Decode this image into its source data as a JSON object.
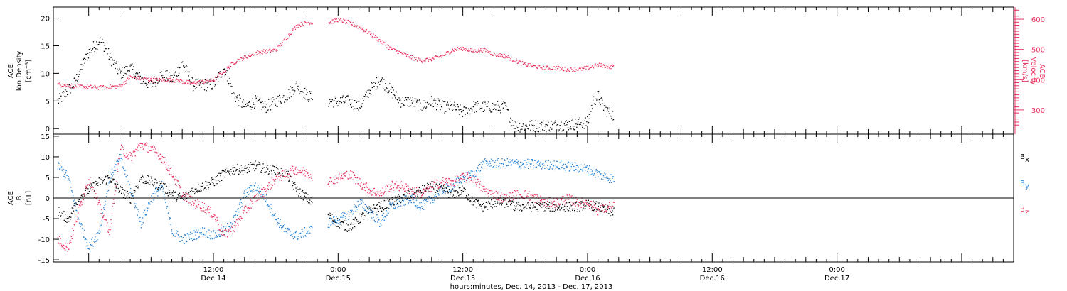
{
  "figure": {
    "xlabel": "hours:minutes, Dec. 14, 2013 - Dec. 17, 2013",
    "x_range_hours": [
      -3.4,
      89.0
    ],
    "x_ticks": [
      {
        "h": 12,
        "time": "12:00",
        "date": "Dec.14"
      },
      {
        "h": 24,
        "time": "0:00",
        "date": "Dec.15"
      },
      {
        "h": 36,
        "time": "12:00",
        "date": "Dec.15"
      },
      {
        "h": 48,
        "time": "0:00",
        "date": "Dec.16"
      },
      {
        "h": 60,
        "time": "12:00",
        "date": "Dec.16"
      },
      {
        "h": 72,
        "time": "0:00",
        "date": "Dec.17"
      }
    ]
  },
  "colors": {
    "black": "#000000",
    "pink": "#e8305f",
    "blue": "#1e7fd6"
  },
  "chart_data": [
    {
      "type": "scatter",
      "title": "",
      "ylabel_left": [
        "ACE",
        "Ion Density",
        "[cm⁻³]"
      ],
      "ylabel_right": [
        "ACE",
        "Velocity",
        "[km/s]"
      ],
      "ylim_left": [
        -1,
        22
      ],
      "ylim_right": [
        220,
        640
      ],
      "yticks_left": [
        0,
        5,
        10,
        15,
        20
      ],
      "yticks_right": [
        300,
        400,
        500,
        600
      ],
      "series": [
        {
          "name": "",
          "color": "black",
          "axis": "left",
          "x": [
            -3,
            -1.5,
            0,
            1,
            1.5,
            2,
            3,
            4,
            5,
            6,
            7,
            8,
            9,
            10,
            11,
            12,
            13,
            14,
            15,
            16,
            17,
            18,
            19,
            20,
            21,
            23,
            24,
            25,
            26,
            27,
            28,
            29,
            30,
            31,
            32,
            33,
            34,
            35,
            36,
            37,
            38,
            39,
            40,
            41,
            42,
            43,
            44,
            45,
            46,
            47,
            48,
            48.5,
            49,
            49.5,
            50,
            50.5
          ],
          "y": [
            5,
            8,
            14,
            16,
            15,
            13,
            10,
            11,
            9,
            8,
            10,
            9,
            12,
            8,
            8,
            8,
            11,
            6,
            4,
            5,
            4,
            5,
            6,
            8,
            6,
            5,
            5,
            5,
            4,
            7,
            9,
            7,
            5,
            5,
            4,
            5,
            4,
            4,
            3,
            4,
            4,
            4,
            4,
            0.5,
            0.5,
            0.6,
            0.6,
            0.7,
            0.8,
            1,
            1.2,
            5,
            6,
            4,
            3,
            2.5
          ]
        },
        {
          "name": "",
          "color": "pink",
          "axis": "right",
          "x": [
            -3,
            -1,
            1,
            3,
            4,
            6,
            8,
            10,
            12,
            14,
            16,
            18,
            19,
            20,
            21,
            23,
            24,
            25,
            26,
            27,
            28,
            29,
            30,
            31,
            32,
            33,
            34,
            35,
            36,
            37,
            38,
            39,
            40,
            41,
            42,
            43,
            44,
            45,
            46,
            47,
            48,
            49,
            50,
            50.5
          ],
          "y": [
            385,
            380,
            375,
            380,
            410,
            400,
            400,
            390,
            400,
            460,
            490,
            500,
            540,
            580,
            590,
            590,
            600,
            590,
            575,
            555,
            530,
            505,
            490,
            475,
            465,
            470,
            480,
            500,
            505,
            495,
            500,
            485,
            480,
            465,
            450,
            445,
            440,
            440,
            435,
            435,
            440,
            450,
            445,
            445
          ]
        }
      ]
    },
    {
      "type": "scatter",
      "title": "",
      "ylabel_left": [
        "ACE",
        "B",
        "[nT]"
      ],
      "ylim_left": [
        -15.5,
        15.5
      ],
      "yticks_left": [
        -15,
        -10,
        -5,
        0,
        5,
        10,
        15
      ],
      "zero_line": true,
      "legend": [
        {
          "label": "B",
          "sub": "x",
          "color": "black"
        },
        {
          "label": "B",
          "sub": "y",
          "color": "blue"
        },
        {
          "label": "B",
          "sub": "z",
          "color": "pink"
        }
      ],
      "series": [
        {
          "name": "Bx",
          "color": "black",
          "x": [
            -3,
            -2,
            -1,
            0,
            1,
            2,
            3,
            4,
            5,
            6,
            7,
            8,
            9,
            10,
            11,
            12,
            13,
            14,
            15,
            16,
            17,
            18,
            19,
            20,
            21,
            23,
            24,
            25,
            26,
            27,
            28,
            29,
            30,
            31,
            32,
            33,
            34,
            35,
            36,
            37,
            38,
            39,
            40,
            41,
            42,
            43,
            44,
            45,
            46,
            47,
            48,
            49,
            50,
            50.5
          ],
          "y": [
            -3,
            -5,
            0,
            2,
            4,
            5,
            2,
            0,
            5,
            4,
            3,
            1,
            0,
            2,
            3,
            4,
            6,
            7,
            7,
            8,
            7,
            7,
            6,
            2,
            0,
            -4,
            -6,
            -7,
            -5,
            -3,
            -2,
            -1,
            0,
            1,
            2,
            3,
            2,
            1,
            2,
            -1,
            -2,
            -1,
            -1,
            -2,
            -2,
            -2,
            -2,
            -2,
            -2,
            -2,
            -1.5,
            -2,
            -3,
            -3.5
          ]
        },
        {
          "name": "By",
          "color": "blue",
          "x": [
            -3,
            -2,
            -1,
            0,
            1,
            2,
            3,
            4,
            5,
            6,
            7,
            8,
            9,
            10,
            11,
            12,
            13,
            14,
            15,
            16,
            17,
            18,
            19,
            20,
            21,
            23,
            24,
            25,
            26,
            27,
            28,
            29,
            30,
            31,
            32,
            33,
            34,
            35,
            36,
            37,
            38,
            39,
            40,
            41,
            42,
            43,
            44,
            45,
            46,
            47,
            48,
            49,
            50,
            50.5
          ],
          "y": [
            8,
            5,
            -5,
            -12,
            -8,
            5,
            10,
            2,
            -6,
            0,
            3,
            -8,
            -10,
            -9,
            -8,
            -9,
            -8,
            -5,
            1,
            3,
            0,
            -5,
            -8,
            -9,
            -8,
            -6,
            -5,
            -4,
            -1,
            -3,
            -6,
            -2,
            -1,
            0,
            -2,
            0,
            2,
            3,
            5,
            6,
            8.5,
            8.5,
            8.5,
            8.5,
            8.4,
            8.3,
            8.2,
            8.0,
            7.8,
            7.5,
            7.0,
            6.0,
            5.0,
            4.8
          ]
        },
        {
          "name": "Bz",
          "color": "pink",
          "x": [
            -3,
            -2,
            -1,
            0,
            1,
            2,
            3,
            4,
            5,
            6,
            7,
            8,
            9,
            10,
            11,
            12,
            13,
            14,
            15,
            16,
            17,
            18,
            19,
            20,
            21,
            23,
            24,
            25,
            26,
            27,
            28,
            29,
            30,
            31,
            32,
            33,
            34,
            35,
            36,
            37,
            38,
            39,
            40,
            41,
            42,
            43,
            44,
            45,
            46,
            47,
            48,
            49,
            50,
            50.5
          ],
          "y": [
            -10,
            -12,
            -3,
            5,
            -2,
            -8,
            12,
            10,
            13,
            12,
            10,
            6,
            1,
            -1,
            -2,
            -4,
            -9,
            -7,
            -3,
            0,
            2,
            5,
            6,
            7,
            6,
            4,
            5,
            6,
            4,
            2,
            1,
            3,
            3,
            2,
            1,
            3,
            4,
            4,
            5,
            5,
            2,
            1,
            0,
            1,
            1,
            0,
            -1,
            -1,
            0,
            -1,
            -1,
            -3,
            -2,
            -2
          ]
        }
      ]
    }
  ]
}
